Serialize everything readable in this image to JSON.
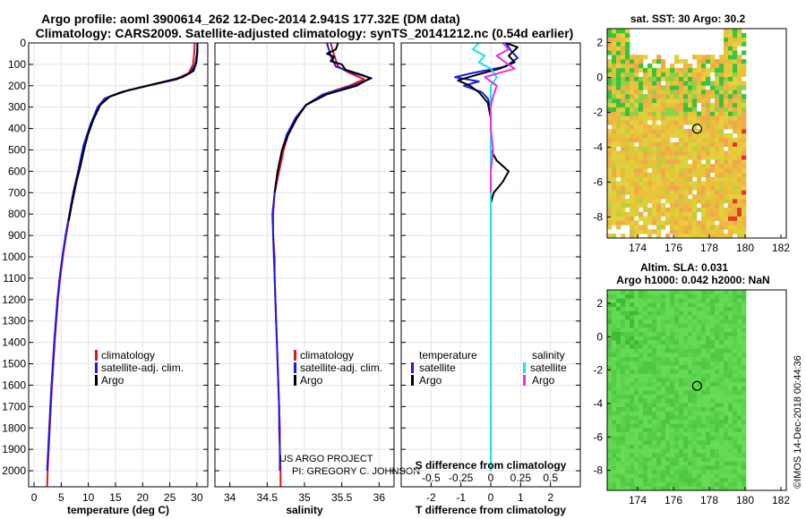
{
  "header": {
    "line1": "Argo profile: aoml 3900614_262 12-Dec-2014 2.941S 177.32E (DM data)",
    "line2": "Climatology: CARS2009. Satellite-adjusted climatology: synTS_20141212.nc (0.54d earlier)"
  },
  "colors": {
    "climatology": "#e8141b",
    "satellite_adj": "#1a1ae6",
    "argo": "#000000",
    "salinity_satellite": "#16e4e4",
    "salinity_argo": "#e431e4",
    "sst_map_base": "#e8c43c",
    "ssh_map_base": "#5bd54b"
  },
  "legend": {
    "climatology": "climatology",
    "satellite_adj": "satellite-adj. clim.",
    "argo": "Argo"
  },
  "difference_legend": {
    "temperature_title": "temperature",
    "salinity_title": "salinity",
    "satellite": "satellite",
    "argo": "Argo"
  },
  "credits": {
    "line1": "US ARGO PROJECT",
    "line2": "PI: GREGORY C. JOHNSON"
  },
  "watermark": "©IMOS 14-Dec-2018 00:44:36",
  "maps": {
    "sst_title": "sat. SST: 30 Argo: 30.2",
    "ssh_title_line1": "Altim. SLA: 0.031",
    "ssh_title_line2": "Argo h1000: 0.042 h2000: NaN",
    "lon_ticks": [
      "174",
      "176",
      "178",
      "180",
      "182"
    ],
    "lat_ticks": [
      "2",
      "0",
      "-2",
      "-4",
      "-6",
      "-8"
    ],
    "lon_range": [
      172.3,
      182.3
    ],
    "lat_range": [
      -9.2,
      2.8
    ],
    "float_position": {
      "lon": 177.32,
      "lat": -2.941
    }
  },
  "chart_data": [
    {
      "type": "line",
      "panel": "temperature",
      "xlabel": "temperature (deg C)",
      "ylabel": "",
      "xlim": [
        -1,
        32
      ],
      "ylim": [
        2075,
        0
      ],
      "x_ticks": [
        0,
        5,
        10,
        15,
        20,
        25,
        30
      ],
      "x_tick_labels": [
        "0",
        "5",
        "10",
        "15",
        "20",
        "25",
        "30"
      ],
      "y_ticks": [
        0,
        100,
        200,
        300,
        400,
        500,
        600,
        700,
        800,
        900,
        1000,
        1100,
        1200,
        1300,
        1400,
        1500,
        1600,
        1700,
        1800,
        1900,
        2000
      ],
      "y_tick_labels": [
        "0",
        "100",
        "200",
        "300",
        "400",
        "500",
        "600",
        "700",
        "800",
        "900",
        "1000",
        "1100",
        "1200",
        "1300",
        "1400",
        "1500",
        "1600",
        "1700",
        "1800",
        "1900",
        "2000"
      ],
      "series": [
        {
          "name": "climatology",
          "points": [
            [
              29.6,
              0
            ],
            [
              29.5,
              50
            ],
            [
              29.3,
              100
            ],
            [
              28.5,
              140
            ],
            [
              26,
              170
            ],
            [
              21,
              200
            ],
            [
              16,
              230
            ],
            [
              13.2,
              260
            ],
            [
              11.8,
              300
            ],
            [
              10.5,
              380
            ],
            [
              9.2,
              480
            ],
            [
              8.2,
              600
            ],
            [
              7.3,
              700
            ],
            [
              6.6,
              800
            ],
            [
              5.9,
              900
            ],
            [
              5.3,
              1000
            ],
            [
              4.8,
              1100
            ],
            [
              4.4,
              1200
            ],
            [
              4.1,
              1300
            ],
            [
              3.8,
              1400
            ],
            [
              3.55,
              1500
            ],
            [
              3.3,
              1600
            ],
            [
              3.1,
              1700
            ],
            [
              2.9,
              1800
            ],
            [
              2.7,
              1900
            ],
            [
              2.5,
              2000
            ],
            [
              2.4,
              2075
            ]
          ]
        },
        {
          "name": "satellite-adj. clim.",
          "points": [
            [
              30.1,
              0
            ],
            [
              30,
              50
            ],
            [
              29.7,
              100
            ],
            [
              28.8,
              140
            ],
            [
              26.3,
              170
            ],
            [
              21,
              200
            ],
            [
              16,
              230
            ],
            [
              13,
              260
            ],
            [
              11.7,
              300
            ],
            [
              10.4,
              380
            ],
            [
              9.1,
              480
            ],
            [
              8.1,
              600
            ],
            [
              7.2,
              700
            ],
            [
              6.5,
              800
            ],
            [
              5.8,
              900
            ],
            [
              5.2,
              1000
            ],
            [
              4.7,
              1100
            ],
            [
              4.3,
              1200
            ],
            [
              4,
              1300
            ],
            [
              3.7,
              1400
            ],
            [
              3.45,
              1500
            ],
            [
              3.2,
              1600
            ],
            [
              3,
              1700
            ],
            [
              2.8,
              1800
            ],
            [
              2.6,
              1900
            ],
            [
              2.4,
              2000
            ]
          ]
        },
        {
          "name": "Argo",
          "points": [
            [
              30.1,
              0
            ],
            [
              30.1,
              40
            ],
            [
              29.9,
              90
            ],
            [
              29.4,
              130
            ],
            [
              27.4,
              160
            ],
            [
              22.5,
              190
            ],
            [
              17.5,
              220
            ],
            [
              14,
              250
            ],
            [
              12.2,
              290
            ],
            [
              10.9,
              360
            ],
            [
              9.9,
              430
            ],
            [
              9.2,
              500
            ],
            [
              8.5,
              580
            ],
            [
              7.8,
              650
            ],
            [
              7.4,
              700
            ],
            [
              6.9,
              760
            ],
            [
              6.4,
              830
            ]
          ]
        }
      ]
    },
    {
      "type": "line",
      "panel": "salinity",
      "xlabel": "salinity",
      "ylabel": "",
      "xlim": [
        33.8,
        36.2
      ],
      "ylim": [
        2075,
        0
      ],
      "x_ticks": [
        34,
        34.5,
        35,
        35.5,
        36
      ],
      "x_tick_labels": [
        "34",
        "34.5",
        "35",
        "35.5",
        "36"
      ],
      "series": [
        {
          "name": "climatology",
          "points": [
            [
              35.35,
              0
            ],
            [
              35.4,
              60
            ],
            [
              35.45,
              110
            ],
            [
              35.6,
              140
            ],
            [
              35.8,
              170
            ],
            [
              35.6,
              200
            ],
            [
              35.25,
              240
            ],
            [
              35.02,
              290
            ],
            [
              34.9,
              350
            ],
            [
              34.78,
              430
            ],
            [
              34.72,
              500
            ],
            [
              34.66,
              600
            ],
            [
              34.6,
              700
            ],
            [
              34.58,
              800
            ],
            [
              34.58,
              900
            ],
            [
              34.6,
              1000
            ],
            [
              34.6,
              1100
            ],
            [
              34.61,
              1200
            ],
            [
              34.62,
              1300
            ],
            [
              34.63,
              1400
            ],
            [
              34.64,
              1500
            ],
            [
              34.65,
              1600
            ],
            [
              34.66,
              1700
            ],
            [
              34.67,
              1800
            ],
            [
              34.67,
              1900
            ],
            [
              34.68,
              2000
            ],
            [
              34.68,
              2075
            ]
          ]
        },
        {
          "name": "satellite-adj. clim.",
          "points": [
            [
              35.3,
              0
            ],
            [
              35.35,
              60
            ],
            [
              35.42,
              110
            ],
            [
              35.65,
              140
            ],
            [
              35.9,
              165
            ],
            [
              35.65,
              200
            ],
            [
              35.25,
              240
            ],
            [
              35.02,
              290
            ],
            [
              34.88,
              350
            ],
            [
              34.76,
              430
            ],
            [
              34.7,
              500
            ],
            [
              34.64,
              600
            ],
            [
              34.6,
              700
            ],
            [
              34.57,
              800
            ],
            [
              34.58,
              900
            ],
            [
              34.59,
              1000
            ],
            [
              34.6,
              1100
            ],
            [
              34.61,
              1200
            ],
            [
              34.62,
              1300
            ],
            [
              34.63,
              1400
            ],
            [
              34.64,
              1500
            ],
            [
              34.65,
              1600
            ],
            [
              34.66,
              1700
            ],
            [
              34.66,
              1800
            ],
            [
              34.67,
              1900
            ],
            [
              34.67,
              2000
            ]
          ]
        },
        {
          "name": "Argo",
          "points": [
            [
              35.45,
              0
            ],
            [
              35.42,
              30
            ],
            [
              35.3,
              50
            ],
            [
              35.4,
              65
            ],
            [
              35.35,
              85
            ],
            [
              35.5,
              100
            ],
            [
              35.55,
              125
            ],
            [
              35.78,
              150
            ],
            [
              35.88,
              165
            ],
            [
              35.7,
              200
            ],
            [
              35.3,
              240
            ],
            [
              35.02,
              290
            ],
            [
              34.9,
              350
            ],
            [
              34.78,
              430
            ],
            [
              34.7,
              500
            ],
            [
              34.64,
              600
            ],
            [
              34.6,
              700
            ]
          ]
        }
      ]
    },
    {
      "type": "line",
      "panel": "differences",
      "xlabel": "T difference from climatology",
      "x2label": "S difference from climatology",
      "ylabel": "",
      "xlim": [
        -3,
        3
      ],
      "ylim": [
        2075,
        0
      ],
      "x_ticks": [
        -2,
        -1,
        0,
        1,
        2
      ],
      "x_tick_labels": [
        "-2",
        "-1",
        "0",
        "1",
        "2"
      ],
      "x2_ticks": [
        -0.5,
        -0.25,
        0,
        0.25,
        0.5
      ],
      "x2_tick_labels": [
        "-0.5",
        "-0.25",
        "0",
        "0.25",
        "0.5"
      ],
      "x2lim": [
        -0.75,
        0.75
      ],
      "series": [
        {
          "name": "temperature satellite",
          "axis": "T",
          "points": [
            [
              0.5,
              0
            ],
            [
              0.7,
              40
            ],
            [
              0.9,
              70
            ],
            [
              0.5,
              110
            ],
            [
              -0.6,
              140
            ],
            [
              -1.2,
              160
            ],
            [
              -0.4,
              180
            ],
            [
              -0.9,
              200
            ],
            [
              -0.3,
              230
            ],
            [
              -0.1,
              260
            ],
            [
              0,
              300
            ],
            [
              0,
              400
            ],
            [
              0,
              600
            ],
            [
              0,
              800
            ],
            [
              0,
              1000
            ],
            [
              0,
              1200
            ],
            [
              0,
              1400
            ],
            [
              0,
              1600
            ],
            [
              0,
              1800
            ],
            [
              0,
              2000
            ]
          ]
        },
        {
          "name": "temperature Argo",
          "axis": "T",
          "points": [
            [
              0.5,
              0
            ],
            [
              0.9,
              20
            ],
            [
              0.6,
              60
            ],
            [
              0.8,
              90
            ],
            [
              0.3,
              120
            ],
            [
              -0.5,
              150
            ],
            [
              -1.1,
              175
            ],
            [
              -0.7,
              200
            ],
            [
              -0.4,
              230
            ],
            [
              -0.1,
              280
            ],
            [
              0,
              350
            ],
            [
              0,
              450
            ],
            [
              0,
              500
            ],
            [
              0.2,
              550
            ],
            [
              0.6,
              600
            ],
            [
              0.4,
              650
            ],
            [
              0.1,
              700
            ],
            [
              0,
              750
            ],
            [
              0,
              830
            ]
          ]
        },
        {
          "name": "salinity satellite",
          "axis": "S",
          "points": [
            [
              -0.1,
              0
            ],
            [
              -0.15,
              30
            ],
            [
              -0.05,
              60
            ],
            [
              -0.1,
              90
            ],
            [
              0,
              120
            ],
            [
              0.05,
              160
            ],
            [
              0,
              200
            ],
            [
              0,
              300
            ],
            [
              0,
              500
            ],
            [
              0,
              800
            ],
            [
              0,
              1200
            ],
            [
              0,
              1600
            ],
            [
              0,
              2000
            ]
          ]
        },
        {
          "name": "salinity Argo",
          "axis": "S",
          "points": [
            [
              0.1,
              0
            ],
            [
              0.15,
              30
            ],
            [
              0.05,
              60
            ],
            [
              0.12,
              90
            ],
            [
              0.2,
              120
            ],
            [
              -0.05,
              160
            ],
            [
              0.05,
              200
            ],
            [
              0.02,
              250
            ],
            [
              0,
              300
            ],
            [
              0,
              400
            ],
            [
              0.02,
              500
            ],
            [
              0,
              600
            ],
            [
              0,
              700
            ]
          ]
        }
      ]
    }
  ]
}
